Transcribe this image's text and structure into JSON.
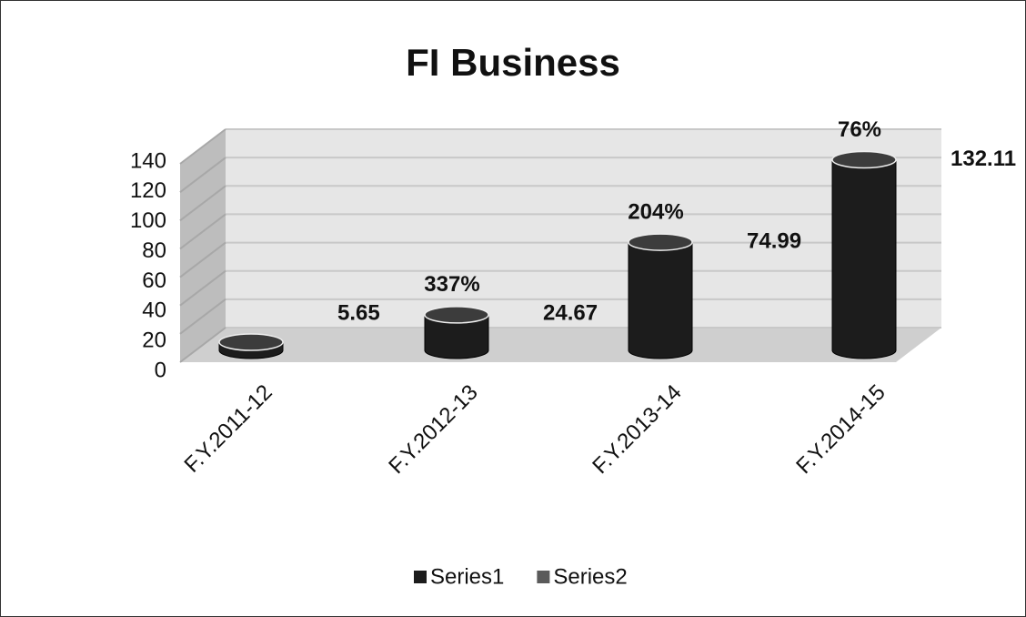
{
  "chart_data": {
    "type": "bar3d",
    "title": "FI Business",
    "categories": [
      "F.Y.2011-12",
      "F.Y.2012-13",
      "F.Y.2013-14",
      "F.Y.2014-15"
    ],
    "series": [
      {
        "name": "Series1",
        "color": "#1c1c1c",
        "values": [
          5.65,
          24.67,
          74.99,
          132.11
        ]
      },
      {
        "name": "Series2",
        "color": "#5a5a5a",
        "values": [
          null,
          337,
          204,
          76
        ],
        "value_labels": [
          null,
          "337%",
          "204%",
          "76%"
        ]
      }
    ],
    "ylim": [
      0,
      140
    ],
    "yticks": [
      0,
      20,
      40,
      60,
      80,
      100,
      120,
      140
    ],
    "grid": true,
    "legend": "bottom"
  }
}
